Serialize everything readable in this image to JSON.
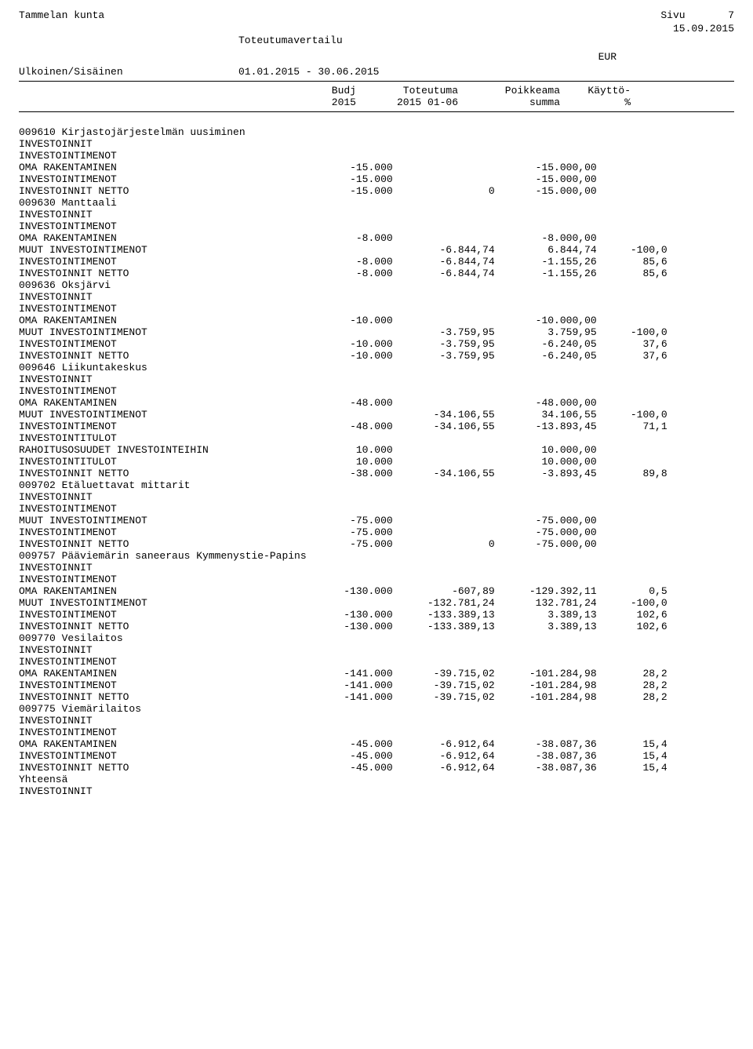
{
  "header": {
    "org": "Tammelan kunta",
    "page_label": "Sivu",
    "page_num": "7",
    "date": "15.09.2015",
    "subtitle": "Toteutumavertailu",
    "currency": "EUR",
    "scope": "Ulkoinen/Sisäinen",
    "period": "01.01.2015 - 30.06.2015"
  },
  "cols": {
    "c1a": "Budj",
    "c1b": "2015",
    "c2a": "Toteutuma",
    "c2b": "2015 01-06",
    "c3a": "Poikkeama",
    "c3b": "summa",
    "c4a": "Käyttö-",
    "c4b": "%"
  },
  "rows": [
    {
      "t": "spacer"
    },
    {
      "t": "b0",
      "label": "009610 Kirjastojärjestelmän uusiminen"
    },
    {
      "t": "b0",
      "label": "INVESTOINNIT"
    },
    {
      "t": "i1",
      "label": "INVESTOINTIMENOT"
    },
    {
      "t": "i2",
      "label": "OMA RAKENTAMINEN",
      "c1": "-15.000",
      "c3": "-15.000,00"
    },
    {
      "t": "i1",
      "label": "INVESTOINTIMENOT",
      "c1": "-15.000",
      "c3": "-15.000,00"
    },
    {
      "t": "i1",
      "label": "INVESTOINNIT NETTO",
      "c1": "-15.000",
      "c2": "0",
      "c3": "-15.000,00"
    },
    {
      "t": "b0",
      "label": "009630 Manttaali"
    },
    {
      "t": "b0",
      "label": "INVESTOINNIT"
    },
    {
      "t": "i1",
      "label": "INVESTOINTIMENOT"
    },
    {
      "t": "i2",
      "label": "OMA RAKENTAMINEN",
      "c1": "-8.000",
      "c3": "-8.000,00"
    },
    {
      "t": "i2",
      "label": "MUUT INVESTOINTIMENOT",
      "c2": "-6.844,74",
      "c3": "6.844,74",
      "c4": "-100,0"
    },
    {
      "t": "i1",
      "label": "INVESTOINTIMENOT",
      "c1": "-8.000",
      "c2": "-6.844,74",
      "c3": "-1.155,26",
      "c4": "85,6"
    },
    {
      "t": "i1",
      "label": "INVESTOINNIT NETTO",
      "c1": "-8.000",
      "c2": "-6.844,74",
      "c3": "-1.155,26",
      "c4": "85,6"
    },
    {
      "t": "b0",
      "label": "009636 Oksjärvi"
    },
    {
      "t": "b0",
      "label": "INVESTOINNIT"
    },
    {
      "t": "i1",
      "label": "INVESTOINTIMENOT"
    },
    {
      "t": "i2",
      "label": "OMA RAKENTAMINEN",
      "c1": "-10.000",
      "c3": "-10.000,00"
    },
    {
      "t": "i2",
      "label": "MUUT INVESTOINTIMENOT",
      "c2": "-3.759,95",
      "c3": "3.759,95",
      "c4": "-100,0"
    },
    {
      "t": "i1",
      "label": "INVESTOINTIMENOT",
      "c1": "-10.000",
      "c2": "-3.759,95",
      "c3": "-6.240,05",
      "c4": "37,6"
    },
    {
      "t": "i1",
      "label": "INVESTOINNIT NETTO",
      "c1": "-10.000",
      "c2": "-3.759,95",
      "c3": "-6.240,05",
      "c4": "37,6"
    },
    {
      "t": "b0",
      "label": "009646 Liikuntakeskus"
    },
    {
      "t": "b0",
      "label": "INVESTOINNIT"
    },
    {
      "t": "i1",
      "label": "INVESTOINTIMENOT"
    },
    {
      "t": "i2",
      "label": "OMA RAKENTAMINEN",
      "c1": "-48.000",
      "c3": "-48.000,00"
    },
    {
      "t": "i2",
      "label": "MUUT INVESTOINTIMENOT",
      "c2": "-34.106,55",
      "c3": "34.106,55",
      "c4": "-100,0"
    },
    {
      "t": "i1",
      "label": "INVESTOINTIMENOT",
      "c1": "-48.000",
      "c2": "-34.106,55",
      "c3": "-13.893,45",
      "c4": "71,1"
    },
    {
      "t": "i1",
      "label": "INVESTOINTITULOT"
    },
    {
      "t": "i2",
      "label": "RAHOITUSOSUUDET INVESTOINTEIHIN",
      "c1": "10.000",
      "c3": "10.000,00"
    },
    {
      "t": "i1",
      "label": "INVESTOINTITULOT",
      "c1": "10.000",
      "c3": "10.000,00"
    },
    {
      "t": "i1",
      "label": "INVESTOINNIT NETTO",
      "c1": "-38.000",
      "c2": "-34.106,55",
      "c3": "-3.893,45",
      "c4": "89,8"
    },
    {
      "t": "b0",
      "label": "009702 Etäluettavat mittarit"
    },
    {
      "t": "b0",
      "label": "INVESTOINNIT"
    },
    {
      "t": "i1",
      "label": "INVESTOINTIMENOT"
    },
    {
      "t": "i2",
      "label": "MUUT INVESTOINTIMENOT",
      "c1": "-75.000",
      "c3": "-75.000,00"
    },
    {
      "t": "i1",
      "label": "INVESTOINTIMENOT",
      "c1": "-75.000",
      "c3": "-75.000,00"
    },
    {
      "t": "i1",
      "label": "INVESTOINNIT NETTO",
      "c1": "-75.000",
      "c2": "0",
      "c3": "-75.000,00"
    },
    {
      "t": "b0",
      "label": "009757 Pääviemärin saneeraus Kymmenystie-Papins"
    },
    {
      "t": "b0",
      "label": "INVESTOINNIT"
    },
    {
      "t": "i1",
      "label": "INVESTOINTIMENOT"
    },
    {
      "t": "i2",
      "label": "OMA RAKENTAMINEN",
      "c1": "-130.000",
      "c2": "-607,89",
      "c3": "-129.392,11",
      "c4": "0,5"
    },
    {
      "t": "i2",
      "label": "MUUT INVESTOINTIMENOT",
      "c2": "-132.781,24",
      "c3": "132.781,24",
      "c4": "-100,0"
    },
    {
      "t": "i1",
      "label": "INVESTOINTIMENOT",
      "c1": "-130.000",
      "c2": "-133.389,13",
      "c3": "3.389,13",
      "c4": "102,6"
    },
    {
      "t": "i1",
      "label": "INVESTOINNIT NETTO",
      "c1": "-130.000",
      "c2": "-133.389,13",
      "c3": "3.389,13",
      "c4": "102,6"
    },
    {
      "t": "b0",
      "label": "009770 Vesilaitos"
    },
    {
      "t": "b0",
      "label": "INVESTOINNIT"
    },
    {
      "t": "i1",
      "label": "INVESTOINTIMENOT"
    },
    {
      "t": "i2",
      "label": "OMA RAKENTAMINEN",
      "c1": "-141.000",
      "c2": "-39.715,02",
      "c3": "-101.284,98",
      "c4": "28,2"
    },
    {
      "t": "i1",
      "label": "INVESTOINTIMENOT",
      "c1": "-141.000",
      "c2": "-39.715,02",
      "c3": "-101.284,98",
      "c4": "28,2"
    },
    {
      "t": "i1",
      "label": "INVESTOINNIT NETTO",
      "c1": "-141.000",
      "c2": "-39.715,02",
      "c3": "-101.284,98",
      "c4": "28,2"
    },
    {
      "t": "b0",
      "label": "009775 Viemärilaitos"
    },
    {
      "t": "b0",
      "label": "INVESTOINNIT"
    },
    {
      "t": "i1",
      "label": "INVESTOINTIMENOT"
    },
    {
      "t": "i2",
      "label": "OMA RAKENTAMINEN",
      "c1": "-45.000",
      "c2": "-6.912,64",
      "c3": "-38.087,36",
      "c4": "15,4"
    },
    {
      "t": "i1",
      "label": "INVESTOINTIMENOT",
      "c1": "-45.000",
      "c2": "-6.912,64",
      "c3": "-38.087,36",
      "c4": "15,4"
    },
    {
      "t": "i1",
      "label": "INVESTOINNIT NETTO",
      "c1": "-45.000",
      "c2": "-6.912,64",
      "c3": "-38.087,36",
      "c4": "15,4"
    },
    {
      "t": "b0",
      "label": "Yhteensä"
    },
    {
      "t": "b0",
      "label": "INVESTOINNIT"
    }
  ]
}
